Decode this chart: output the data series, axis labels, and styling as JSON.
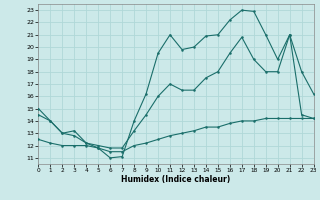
{
  "xlabel": "Humidex (Indice chaleur)",
  "xlim": [
    0,
    23
  ],
  "ylim": [
    10.5,
    23.5
  ],
  "yticks": [
    11,
    12,
    13,
    14,
    15,
    16,
    17,
    18,
    19,
    20,
    21,
    22,
    23
  ],
  "xticks": [
    0,
    1,
    2,
    3,
    4,
    5,
    6,
    7,
    8,
    9,
    10,
    11,
    12,
    13,
    14,
    15,
    16,
    17,
    18,
    19,
    20,
    21,
    22,
    23
  ],
  "bg_color": "#cce9e9",
  "grid_color": "#b0d8d8",
  "line_color": "#1a6e6a",
  "curve_upper_x": [
    0,
    1,
    2,
    3,
    4,
    5,
    6,
    7,
    8,
    9,
    10,
    11,
    12,
    13,
    14,
    15,
    16,
    17,
    18,
    19,
    20,
    21,
    22,
    23
  ],
  "curve_upper_y": [
    15.0,
    14.0,
    13.0,
    12.8,
    12.2,
    11.8,
    11.0,
    11.1,
    14.0,
    16.2,
    19.5,
    21.0,
    19.8,
    20.0,
    20.9,
    21.0,
    22.2,
    23.0,
    22.9,
    21.0,
    19.0,
    21.0,
    14.5,
    14.2
  ],
  "curve_mid_x": [
    0,
    1,
    2,
    3,
    4,
    5,
    6,
    7,
    8,
    9,
    10,
    11,
    12,
    13,
    14,
    15,
    16,
    17,
    18,
    19,
    20,
    21,
    22,
    23
  ],
  "curve_mid_y": [
    14.5,
    14.0,
    13.0,
    13.2,
    12.2,
    12.0,
    11.8,
    11.8,
    13.2,
    14.5,
    16.0,
    17.0,
    16.5,
    16.5,
    17.5,
    18.0,
    19.5,
    20.8,
    19.0,
    18.0,
    18.0,
    21.0,
    18.0,
    16.2
  ],
  "curve_lower_x": [
    0,
    1,
    2,
    3,
    4,
    5,
    6,
    7,
    8,
    9,
    10,
    11,
    12,
    13,
    14,
    15,
    16,
    17,
    18,
    19,
    20,
    21,
    22,
    23
  ],
  "curve_lower_y": [
    12.5,
    12.2,
    12.0,
    12.0,
    12.0,
    11.8,
    11.5,
    11.5,
    12.0,
    12.2,
    12.5,
    12.8,
    13.0,
    13.2,
    13.5,
    13.5,
    13.8,
    14.0,
    14.0,
    14.2,
    14.2,
    14.2,
    14.2,
    14.2
  ]
}
